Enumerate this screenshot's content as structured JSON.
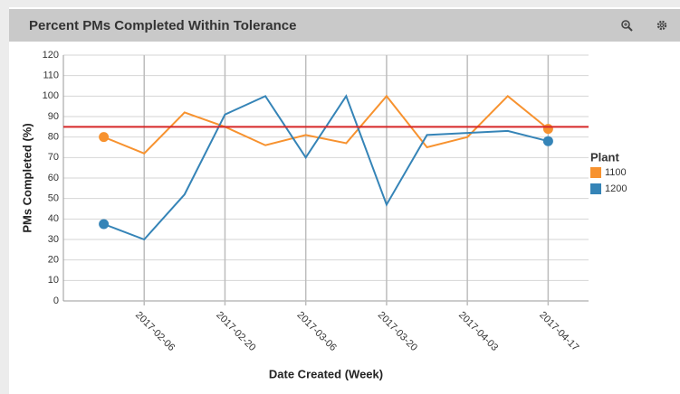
{
  "chart_data": {
    "type": "line",
    "title": "Percent PMs Completed Within Tolerance",
    "x_label": "Date Created (Week)",
    "y_label": "PMs Completed (%)",
    "legend_title": "Plant",
    "x": [
      "2017-01-30",
      "2017-02-06",
      "2017-02-13",
      "2017-02-20",
      "2017-02-27",
      "2017-03-06",
      "2017-03-13",
      "2017-03-20",
      "2017-03-27",
      "2017-04-03",
      "2017-04-10",
      "2017-04-17"
    ],
    "series": [
      {
        "name": "1100",
        "color": "#f7922f",
        "values": [
          80,
          72,
          92,
          85,
          76,
          81,
          77,
          100,
          75,
          80,
          100,
          84
        ]
      },
      {
        "name": "1200",
        "color": "#3584b7",
        "values": [
          37.5,
          30,
          52,
          91,
          100,
          70,
          100,
          47,
          81,
          82,
          83,
          78
        ]
      }
    ],
    "reference_line": {
      "value": 85,
      "color": "#d62728"
    },
    "xlim": [
      "2017-01-23",
      "2017-04-24"
    ],
    "xticks": [
      "2017-02-06",
      "2017-02-20",
      "2017-03-06",
      "2017-03-20",
      "2017-04-03",
      "2017-04-17"
    ],
    "ylim": [
      0,
      120
    ],
    "yticks": [
      0,
      10,
      20,
      30,
      40,
      50,
      60,
      70,
      80,
      90,
      100,
      110,
      120
    ],
    "grid": true,
    "legend_position": "right"
  }
}
